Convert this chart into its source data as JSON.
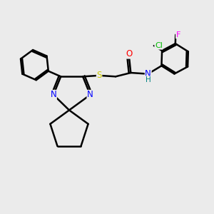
{
  "background_color": "#ebebeb",
  "bond_color": "#000000",
  "atom_colors": {
    "N": "#0000ff",
    "O": "#ff0000",
    "S": "#cccc00",
    "Cl": "#00bb00",
    "F": "#ff00ff",
    "H": "#008080",
    "C": "#000000"
  },
  "title": "",
  "figsize": [
    3.0,
    3.0
  ],
  "dpi": 100
}
